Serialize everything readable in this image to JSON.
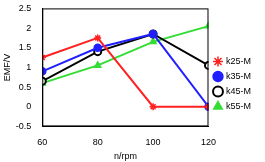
{
  "chart_data": {
    "type": "line",
    "x_label": "n/rpm",
    "y_label": "EMF/V",
    "x": [
      60,
      80,
      100,
      120
    ],
    "series": [
      {
        "name": "k25-M",
        "color": "#ff2020",
        "marker": "star",
        "values": [
          1.25,
          1.75,
          0,
          0
        ]
      },
      {
        "name": "k35-M",
        "color": "#2020ff",
        "marker": "circle",
        "values": [
          0.9,
          1.5,
          1.85,
          0
        ]
      },
      {
        "name": "k45-M",
        "color": "#000000",
        "marker": "open_circle",
        "values": [
          0.65,
          1.4,
          1.85,
          1.05
        ]
      },
      {
        "name": "k55-M",
        "color": "#33dd33",
        "marker": "triangle",
        "values": [
          0.6,
          1.05,
          1.65,
          2.05
        ]
      }
    ],
    "xlim": [
      60,
      120
    ],
    "xticks": [
      60,
      80,
      100,
      120
    ],
    "ylim": [
      -0.5,
      2.5
    ],
    "yticks": [
      -0.5,
      0,
      0.5,
      1,
      1.5,
      2,
      2.5
    ],
    "grid": false,
    "legend": "right"
  }
}
